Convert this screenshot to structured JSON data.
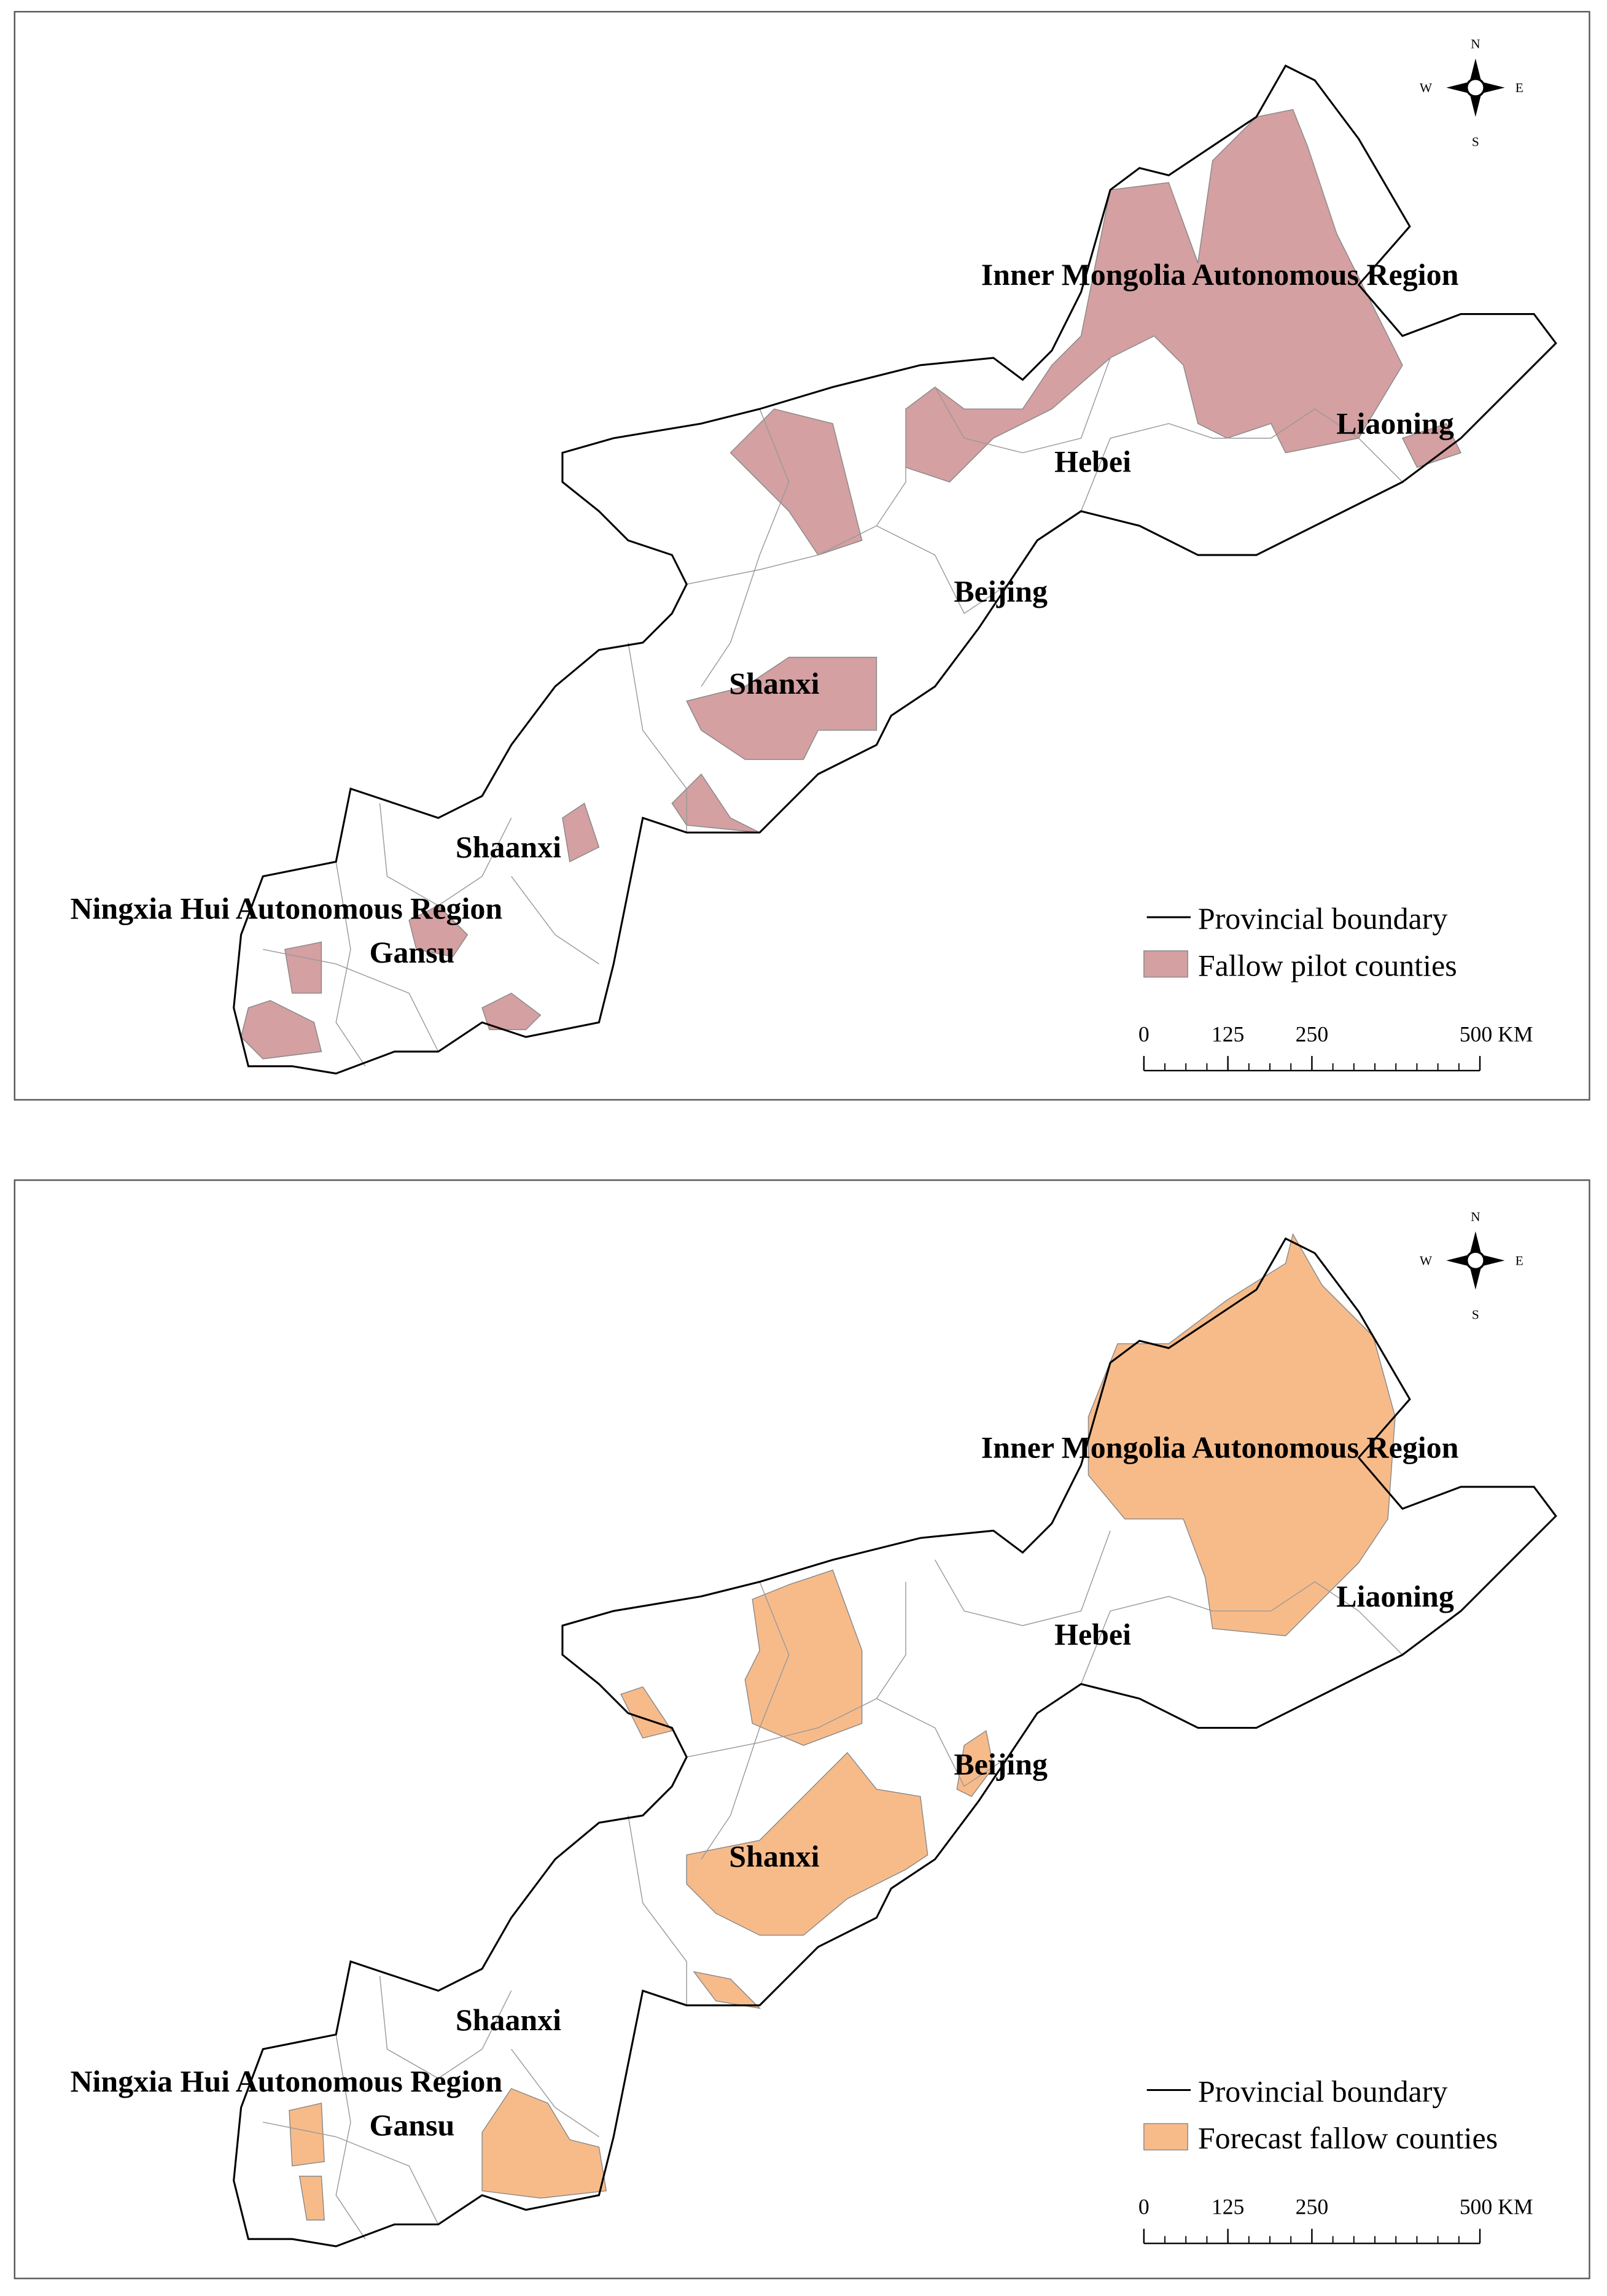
{
  "panels": [
    {
      "provinces": [
        "Inner Mongolia Autonomous Region",
        "Liaoning",
        "Hebei",
        "Beijing",
        "Shanxi",
        "Shaanxi",
        "Ningxia Hui Autonomous Region",
        "Gansu"
      ],
      "legend": [
        "Provincial boundary",
        "Fallow pilot counties"
      ],
      "fill": "#d4a0a2",
      "compass": [
        "N",
        "E",
        "S",
        "W"
      ],
      "scale_ticks": [
        0,
        125,
        250,
        {
          "value": 500,
          "label": "500 KM"
        }
      ]
    },
    {
      "provinces": [
        "Inner Mongolia Autonomous Region",
        "Liaoning",
        "Hebei",
        "Beijing",
        "Shanxi",
        "Shaanxi",
        "Ningxia Hui Autonomous Region",
        "Gansu"
      ],
      "legend": [
        "Provincial boundary",
        "Forecast fallow counties"
      ],
      "fill": "#f7bb8a",
      "compass": [
        "N",
        "E",
        "S",
        "W"
      ],
      "scale_ticks": [
        0,
        125,
        250,
        {
          "value": 500,
          "label": "500 KM"
        }
      ]
    }
  ]
}
